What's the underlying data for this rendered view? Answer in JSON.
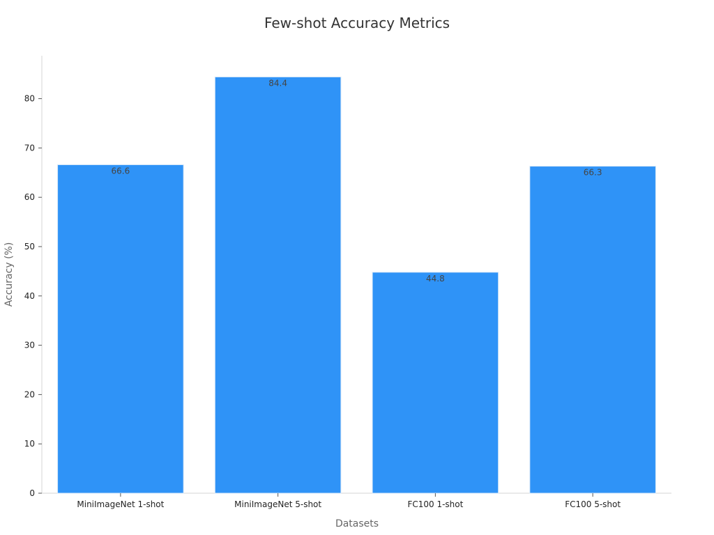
{
  "chart_data": {
    "type": "bar",
    "title": "Few-shot Accuracy Metrics",
    "xlabel": "Datasets",
    "ylabel": "Accuracy (%)",
    "categories": [
      "MiniImageNet 1-shot",
      "MiniImageNet 5-shot",
      "FC100 1-shot",
      "FC100 5-shot"
    ],
    "values": [
      66.6,
      84.4,
      44.8,
      66.3
    ],
    "data_labels": [
      "66.6",
      "84.4",
      "44.8",
      "66.3"
    ],
    "yticks": [
      0,
      10,
      20,
      30,
      40,
      50,
      60,
      70,
      80
    ],
    "ylim": [
      0,
      88.7
    ],
    "grid": false,
    "legend": "none",
    "bar_color": "#2f93f7"
  }
}
